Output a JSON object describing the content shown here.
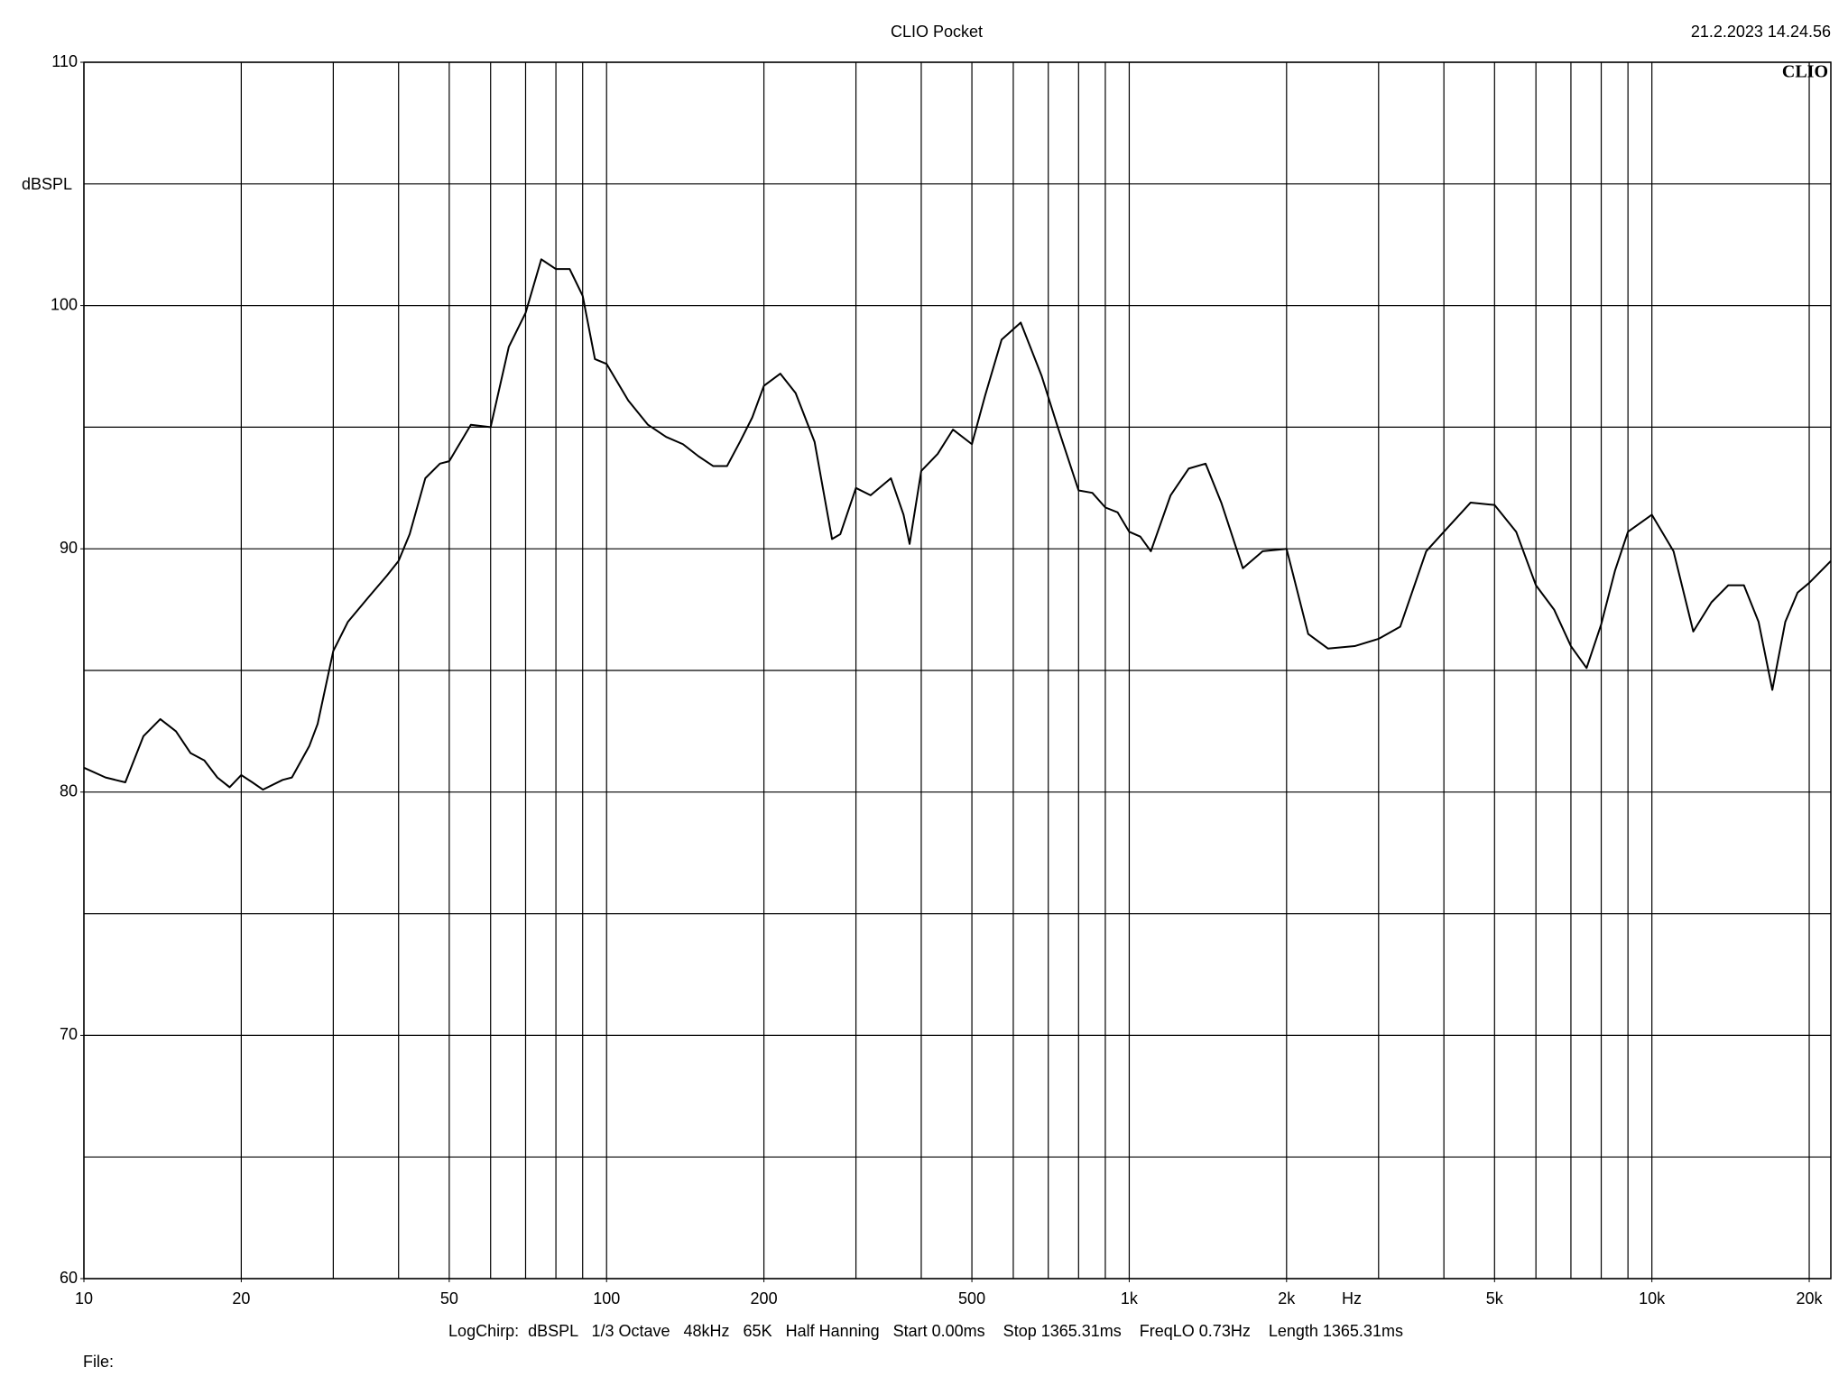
{
  "chart_data": {
    "type": "line",
    "title": "CLIO Pocket",
    "timestamp": "21.2.2023 14.24.56",
    "logo": "CLIO",
    "y_label": "dBSPL",
    "x_label": "Hz",
    "footer": "LogChirp:  dBSPL   1/3 Octave   48kHz   65K   Half Hanning   Start 0.00ms    Stop 1365.31ms    FreqLO 0.73Hz    Length 1365.31ms",
    "file_label": "File:",
    "xscale": "log",
    "xlim": [
      10,
      22000
    ],
    "ylim": [
      60,
      110
    ],
    "xticks": [
      10,
      20,
      50,
      100,
      200,
      500,
      {
        "value": 1000,
        "label": "1k"
      },
      {
        "value": 2000,
        "label": "2k"
      },
      {
        "value": 5000,
        "label": "5k"
      },
      {
        "value": 10000,
        "label": "10k"
      },
      {
        "value": 20000,
        "label": "20k"
      }
    ],
    "yticks": [
      60,
      70,
      80,
      90,
      100,
      110
    ],
    "x_gridlines": [
      10,
      20,
      30,
      40,
      50,
      60,
      70,
      80,
      90,
      100,
      200,
      300,
      400,
      500,
      600,
      700,
      800,
      900,
      1000,
      2000,
      3000,
      4000,
      5000,
      6000,
      7000,
      8000,
      9000,
      10000,
      20000
    ],
    "y_gridlines": [
      60,
      65,
      70,
      75,
      80,
      85,
      90,
      95,
      100,
      105,
      110
    ],
    "grid": true,
    "x": [
      10,
      11,
      12,
      13,
      14,
      15,
      16,
      17,
      18,
      19,
      20,
      21,
      22,
      24,
      25,
      27,
      28,
      30,
      32,
      35,
      38,
      40,
      42,
      45,
      48,
      50,
      55,
      60,
      65,
      70,
      75,
      80,
      85,
      90,
      95,
      100,
      110,
      120,
      130,
      140,
      150,
      160,
      170,
      180,
      190,
      200,
      215,
      230,
      250,
      270,
      280,
      300,
      320,
      350,
      370,
      380,
      400,
      430,
      460,
      500,
      530,
      570,
      620,
      680,
      730,
      800,
      850,
      900,
      950,
      1000,
      1050,
      1100,
      1200,
      1300,
      1400,
      1500,
      1650,
      1800,
      2000,
      2200,
      2400,
      2700,
      3000,
      3300,
      3700,
      4000,
      4500,
      5000,
      5500,
      6000,
      6500,
      7000,
      7500,
      8000,
      8500,
      9000,
      10000,
      11000,
      12000,
      13000,
      14000,
      15000,
      16000,
      17000,
      18000,
      19000,
      20000,
      22000
    ],
    "series": [
      {
        "color": "#000000",
        "values": [
          81.0,
          80.6,
          80.4,
          82.3,
          83.0,
          82.5,
          81.6,
          81.3,
          80.6,
          80.2,
          80.7,
          80.4,
          80.1,
          80.5,
          80.6,
          81.9,
          82.8,
          85.8,
          87.0,
          88.0,
          88.9,
          89.5,
          90.6,
          92.9,
          93.5,
          93.6,
          95.1,
          95.0,
          98.3,
          99.7,
          101.9,
          101.5,
          101.5,
          100.4,
          97.8,
          97.6,
          96.1,
          95.1,
          94.6,
          94.3,
          93.8,
          93.4,
          93.4,
          94.4,
          95.4,
          96.7,
          97.2,
          96.4,
          94.4,
          90.4,
          90.6,
          92.5,
          92.2,
          92.9,
          91.4,
          90.2,
          93.2,
          93.9,
          94.9,
          94.3,
          96.3,
          98.6,
          99.3,
          97.1,
          95.0,
          92.4,
          92.3,
          91.7,
          91.5,
          90.7,
          90.5,
          89.9,
          92.2,
          93.3,
          93.5,
          91.9,
          89.2,
          89.9,
          90.0,
          86.5,
          85.9,
          86.0,
          86.3,
          86.8,
          89.9,
          90.7,
          91.9,
          91.8,
          90.7,
          88.5,
          87.5,
          86.0,
          85.1,
          86.9,
          89.1,
          90.7,
          91.4,
          89.9,
          86.6,
          87.8,
          88.5,
          88.5,
          87.0,
          84.2,
          87.0,
          88.2,
          88.6,
          89.5
        ]
      }
    ]
  }
}
